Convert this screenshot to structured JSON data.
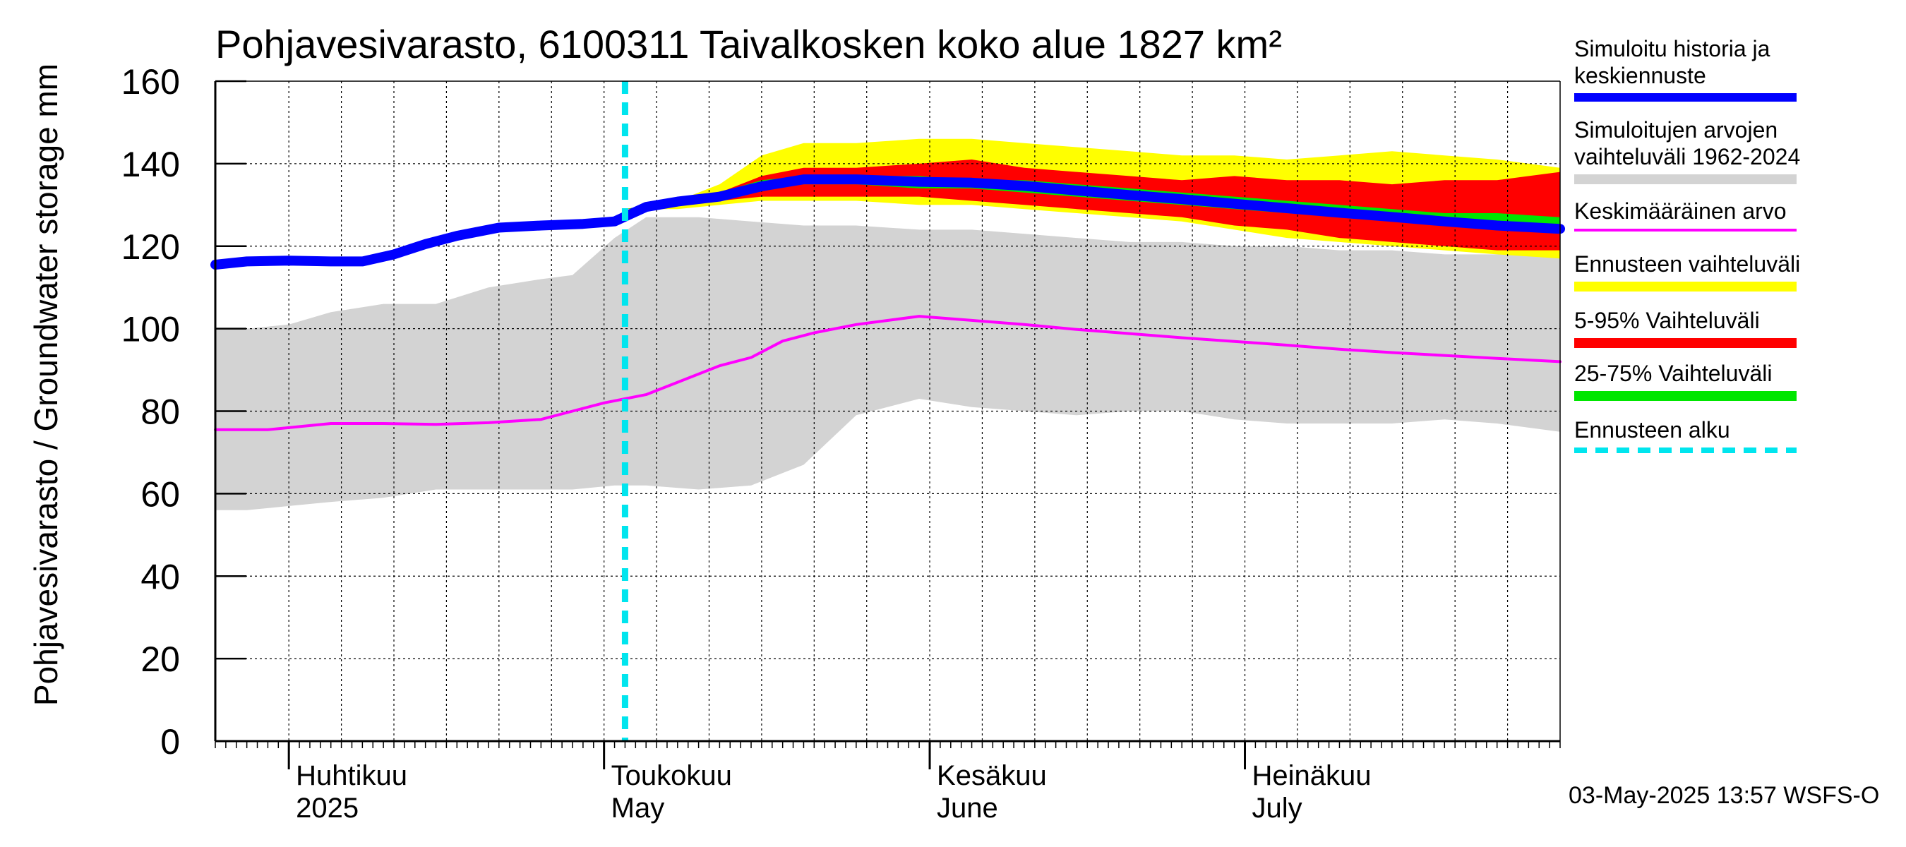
{
  "chart_data": {
    "type": "area",
    "title": "Pohjavesivarasto, 6100311 Taivalkosken koko alue 1827 km²",
    "ylabel": "Pohjavesivarasto / Groundwater storage   mm",
    "xlabel": "",
    "ylim": [
      0,
      160
    ],
    "yticks": [
      0,
      20,
      40,
      60,
      80,
      100,
      120,
      140,
      160
    ],
    "xlim": [
      "2025-03-25",
      "2025-07-31"
    ],
    "grid": true,
    "legend_position": "right",
    "month_labels": [
      {
        "date": "2025-04-01",
        "fi": "Huhtikuu",
        "en": "2025"
      },
      {
        "date": "2025-05-01",
        "fi": "Toukokuu",
        "en": "May"
      },
      {
        "date": "2025-06-01",
        "fi": "Kesäkuu",
        "en": "June"
      },
      {
        "date": "2025-07-01",
        "fi": "Heinäkuu",
        "en": "July"
      }
    ],
    "forecast_start": "2025-05-03",
    "series": [
      {
        "key": "sim_range",
        "name": "Simuloitujen arvojen vaihteluväli 1962-2024",
        "color": "#d3d3d3",
        "kind": "band",
        "points": [
          [
            "2025-03-25",
            56,
            100
          ],
          [
            "2025-03-28",
            56,
            100
          ],
          [
            "2025-04-01",
            57,
            101
          ],
          [
            "2025-04-05",
            58,
            104
          ],
          [
            "2025-04-10",
            59,
            106
          ],
          [
            "2025-04-15",
            61,
            106
          ],
          [
            "2025-04-20",
            61,
            110
          ],
          [
            "2025-04-25",
            61,
            112
          ],
          [
            "2025-04-28",
            61,
            113
          ],
          [
            "2025-05-02",
            62,
            122
          ],
          [
            "2025-05-05",
            62,
            127
          ],
          [
            "2025-05-10",
            61,
            127
          ],
          [
            "2025-05-15",
            62,
            126
          ],
          [
            "2025-05-20",
            67,
            125
          ],
          [
            "2025-05-25",
            79,
            125
          ],
          [
            "2025-05-31",
            83,
            124
          ],
          [
            "2025-06-05",
            81,
            124
          ],
          [
            "2025-06-10",
            80,
            123
          ],
          [
            "2025-06-15",
            79,
            122
          ],
          [
            "2025-06-20",
            80,
            121
          ],
          [
            "2025-06-25",
            80,
            121
          ],
          [
            "2025-06-30",
            78,
            120
          ],
          [
            "2025-07-05",
            77,
            120
          ],
          [
            "2025-07-10",
            77,
            119
          ],
          [
            "2025-07-15",
            77,
            119
          ],
          [
            "2025-07-20",
            78,
            118
          ],
          [
            "2025-07-25",
            77,
            118
          ],
          [
            "2025-07-31",
            75,
            118
          ]
        ]
      },
      {
        "key": "forecast_range",
        "name": "Ennusteen vaihteluväli",
        "color": "#ffff00",
        "kind": "band",
        "points": [
          [
            "2025-05-03",
            129,
            129
          ],
          [
            "2025-05-08",
            129,
            131
          ],
          [
            "2025-05-12",
            130,
            135
          ],
          [
            "2025-05-16",
            131,
            142
          ],
          [
            "2025-05-20",
            131,
            145
          ],
          [
            "2025-05-25",
            131,
            145
          ],
          [
            "2025-05-31",
            130,
            146
          ],
          [
            "2025-06-05",
            130,
            146
          ],
          [
            "2025-06-10",
            129,
            145
          ],
          [
            "2025-06-15",
            128,
            144
          ],
          [
            "2025-06-20",
            127,
            143
          ],
          [
            "2025-06-25",
            126,
            142
          ],
          [
            "2025-06-30",
            124,
            142
          ],
          [
            "2025-07-05",
            122,
            141
          ],
          [
            "2025-07-10",
            121,
            142
          ],
          [
            "2025-07-15",
            120,
            143
          ],
          [
            "2025-07-20",
            119,
            142
          ],
          [
            "2025-07-25",
            118,
            141
          ],
          [
            "2025-07-31",
            117,
            139
          ]
        ]
      },
      {
        "key": "p5_95",
        "name": "5-95% Vaihteluväli",
        "color": "#ff0000",
        "kind": "band",
        "points": [
          [
            "2025-05-03",
            129,
            129
          ],
          [
            "2025-05-08",
            130,
            131
          ],
          [
            "2025-05-12",
            131,
            133
          ],
          [
            "2025-05-16",
            132,
            137
          ],
          [
            "2025-05-20",
            132,
            139
          ],
          [
            "2025-05-25",
            132,
            139
          ],
          [
            "2025-05-31",
            132,
            140
          ],
          [
            "2025-06-05",
            131,
            141
          ],
          [
            "2025-06-10",
            130,
            139
          ],
          [
            "2025-06-15",
            129,
            138
          ],
          [
            "2025-06-20",
            128,
            137
          ],
          [
            "2025-06-25",
            127,
            136
          ],
          [
            "2025-06-30",
            125,
            137
          ],
          [
            "2025-07-05",
            124,
            136
          ],
          [
            "2025-07-10",
            122,
            136
          ],
          [
            "2025-07-15",
            121,
            135
          ],
          [
            "2025-07-20",
            120,
            136
          ],
          [
            "2025-07-25",
            119,
            136
          ],
          [
            "2025-07-31",
            119,
            138
          ]
        ]
      },
      {
        "key": "p25_75",
        "name": "25-75% Vaihteluväli",
        "color": "#00e600",
        "kind": "band",
        "points": [
          [
            "2025-05-03",
            129,
            129
          ],
          [
            "2025-05-08",
            130,
            131
          ],
          [
            "2025-05-12",
            132,
            133
          ],
          [
            "2025-05-16",
            134,
            136
          ],
          [
            "2025-05-20",
            135,
            137
          ],
          [
            "2025-05-25",
            135,
            137
          ],
          [
            "2025-05-31",
            134,
            137
          ],
          [
            "2025-06-05",
            134,
            136
          ],
          [
            "2025-06-10",
            133,
            136
          ],
          [
            "2025-06-15",
            132,
            135
          ],
          [
            "2025-06-20",
            131,
            134
          ],
          [
            "2025-06-25",
            130,
            133
          ],
          [
            "2025-06-30",
            129,
            132
          ],
          [
            "2025-07-05",
            128,
            131
          ],
          [
            "2025-07-10",
            127,
            130
          ],
          [
            "2025-07-15",
            126,
            129
          ],
          [
            "2025-07-20",
            125,
            128
          ],
          [
            "2025-07-25",
            124,
            128
          ],
          [
            "2025-07-31",
            123,
            127
          ]
        ]
      },
      {
        "key": "mean",
        "name": "Keskimääräinen arvo",
        "color": "#ff00ff",
        "kind": "line",
        "width": 4,
        "points": [
          [
            "2025-03-25",
            75.5
          ],
          [
            "2025-03-30",
            75.5
          ],
          [
            "2025-04-05",
            77
          ],
          [
            "2025-04-10",
            77
          ],
          [
            "2025-04-15",
            76.8
          ],
          [
            "2025-04-20",
            77.2
          ],
          [
            "2025-04-25",
            78
          ],
          [
            "2025-04-28",
            80
          ],
          [
            "2025-05-01",
            82
          ],
          [
            "2025-05-05",
            84
          ],
          [
            "2025-05-08",
            87
          ],
          [
            "2025-05-12",
            91
          ],
          [
            "2025-05-15",
            93
          ],
          [
            "2025-05-18",
            97
          ],
          [
            "2025-05-21",
            99
          ],
          [
            "2025-05-25",
            101
          ],
          [
            "2025-05-31",
            103
          ],
          [
            "2025-06-05",
            102
          ],
          [
            "2025-06-10",
            101
          ],
          [
            "2025-06-15",
            99.8
          ],
          [
            "2025-06-20",
            98.8
          ],
          [
            "2025-06-25",
            97.8
          ],
          [
            "2025-06-30",
            96.9
          ],
          [
            "2025-07-05",
            96
          ],
          [
            "2025-07-10",
            95
          ],
          [
            "2025-07-15",
            94.2
          ],
          [
            "2025-07-20",
            93.5
          ],
          [
            "2025-07-25",
            92.8
          ],
          [
            "2025-07-31",
            92
          ]
        ]
      },
      {
        "key": "sim",
        "name": "Simuloitu historia ja keskiennuste",
        "color": "#0000ff",
        "kind": "line",
        "width": 14,
        "points": [
          [
            "2025-03-25",
            115.5
          ],
          [
            "2025-03-28",
            116.3
          ],
          [
            "2025-04-01",
            116.5
          ],
          [
            "2025-04-05",
            116.3
          ],
          [
            "2025-04-08",
            116.3
          ],
          [
            "2025-04-11",
            118
          ],
          [
            "2025-04-14",
            120.5
          ],
          [
            "2025-04-17",
            122.5
          ],
          [
            "2025-04-21",
            124.5
          ],
          [
            "2025-04-25",
            125
          ],
          [
            "2025-04-29",
            125.4
          ],
          [
            "2025-05-02",
            126
          ],
          [
            "2025-05-05",
            129.5
          ],
          [
            "2025-05-08",
            130.8
          ],
          [
            "2025-05-12",
            132
          ],
          [
            "2025-05-16",
            134.5
          ],
          [
            "2025-05-20",
            136.2
          ],
          [
            "2025-05-25",
            136.2
          ],
          [
            "2025-05-31",
            135.6
          ],
          [
            "2025-06-05",
            135.4
          ],
          [
            "2025-06-10",
            134.6
          ],
          [
            "2025-06-15",
            133.5
          ],
          [
            "2025-06-20",
            132.4
          ],
          [
            "2025-06-25",
            131.4
          ],
          [
            "2025-06-30",
            130.3
          ],
          [
            "2025-07-05",
            129.2
          ],
          [
            "2025-07-10",
            128.1
          ],
          [
            "2025-07-15",
            127.1
          ],
          [
            "2025-07-20",
            126
          ],
          [
            "2025-07-25",
            125
          ],
          [
            "2025-07-31",
            124.2
          ]
        ]
      }
    ],
    "legend": [
      {
        "label": "Simuloitu historia ja keskiennuste",
        "color": "#0000ff",
        "style": "line-thick"
      },
      {
        "label": "Simuloitujen arvojen vaihteluväli 1962-2024",
        "color": "#d3d3d3",
        "style": "band"
      },
      {
        "label": "Keskimääräinen arvo",
        "color": "#ff00ff",
        "style": "line-thin"
      },
      {
        "label": "Ennusteen vaihteluväli",
        "color": "#ffff00",
        "style": "band"
      },
      {
        "label": "5-95% Vaihteluväli",
        "color": "#ff0000",
        "style": "band"
      },
      {
        "label": "25-75% Vaihteluväli",
        "color": "#00e600",
        "style": "band"
      },
      {
        "label": "Ennusteen alku",
        "color": "#00e5ee",
        "style": "dashed"
      }
    ]
  },
  "legend_lines": [
    [
      "Simuloitu historia ja",
      "keskiennuste"
    ],
    [
      "Simuloitujen arvojen",
      "vaihteluväli 1962-2024"
    ],
    [
      "Keskimääräinen arvo"
    ],
    [
      "Ennusteen vaihteluväli"
    ],
    [
      "5-95% Vaihteluväli"
    ],
    [
      "25-75% Vaihteluväli"
    ],
    [
      "Ennusteen alku"
    ]
  ],
  "footer": "03-May-2025 13:57 WSFS-O"
}
